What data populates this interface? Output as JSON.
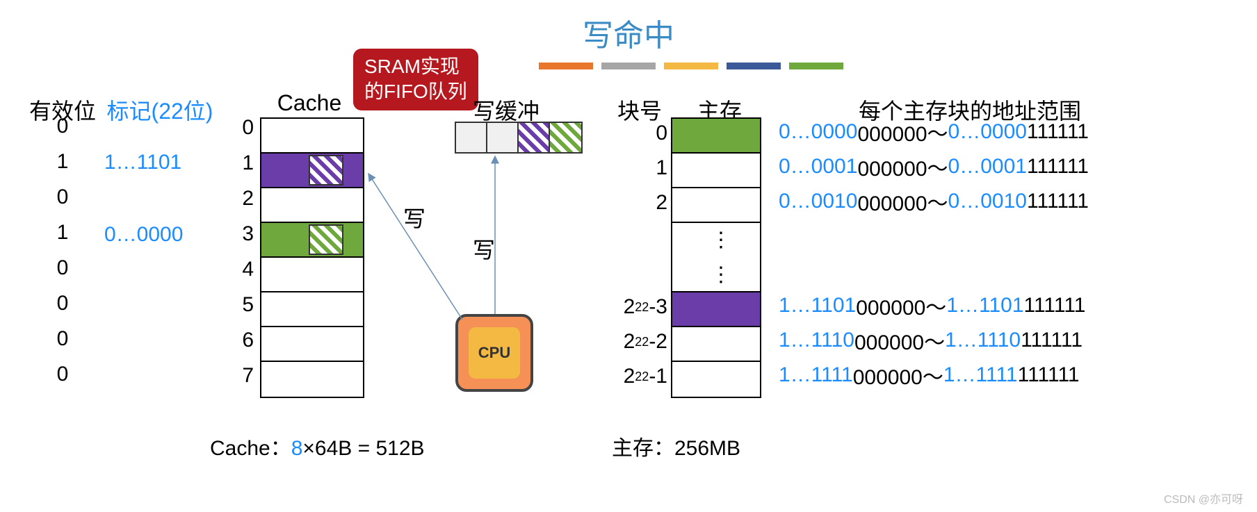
{
  "title": "写命中",
  "color_bars": [
    "#e8762d",
    "#a6a6a6",
    "#f4b942",
    "#3b5998",
    "#6fa83d"
  ],
  "callout": {
    "line1": "SRAM实现",
    "line2": "的FIFO队列",
    "bg": "#b5181e",
    "fg": "#ffffff"
  },
  "buffer_label": "写缓冲",
  "write_buffer": [
    {
      "fill": "#f0f0f0"
    },
    {
      "fill": "#f0f0f0"
    },
    {
      "hatch": "purple"
    },
    {
      "hatch": "green"
    }
  ],
  "headers": {
    "validbit": "有效位",
    "tag": "标记(22位)",
    "cache": "Cache",
    "block": "块号",
    "memory": "主存",
    "addr_range": "每个主存块的地址范围"
  },
  "colors": {
    "blue": "#1a8cff",
    "black": "#000000",
    "purple": "#6b3da8",
    "green": "#6fa83d",
    "arrow": "#6b8fb5"
  },
  "cache": {
    "valid": [
      "0",
      "1",
      "0",
      "1",
      "0",
      "0",
      "0",
      "0"
    ],
    "tags": [
      "",
      "1…1101",
      "",
      "0…0000",
      "",
      "",
      "",
      ""
    ],
    "indices": [
      "0",
      "1",
      "2",
      "3",
      "4",
      "5",
      "6",
      "7"
    ],
    "rows": [
      {
        "fill": null
      },
      {
        "fill": "purple",
        "hatch": "purple"
      },
      {
        "fill": null
      },
      {
        "fill": "green",
        "hatch": "green"
      },
      {
        "fill": null
      },
      {
        "fill": null
      },
      {
        "fill": null
      },
      {
        "fill": null
      }
    ],
    "caption_prefix": "Cache：",
    "caption_blue": "8",
    "caption_suffix": "×64B = 512B"
  },
  "memory": {
    "block_labels": [
      "0",
      "1",
      "2",
      "",
      "",
      "2²²-3",
      "2²²-2",
      "2²²-1"
    ],
    "rows": [
      {
        "fill": "green"
      },
      {
        "fill": null
      },
      {
        "fill": null
      },
      {
        "dots": true
      },
      {
        "dots": true
      },
      {
        "fill": "purple"
      },
      {
        "fill": null
      },
      {
        "fill": null
      }
    ],
    "addr_ranges": [
      {
        "p1": "0…0000",
        "p2": "000000～ ",
        "p3": "0…0000",
        "p4": "111111"
      },
      {
        "p1": "0…0001",
        "p2": "000000～ ",
        "p3": "0…0001",
        "p4": "111111"
      },
      {
        "p1": "0…0010",
        "p2": "000000～ ",
        "p3": "0…0010",
        "p4": "111111"
      },
      null,
      null,
      {
        "p1": "1…1101",
        "p2": "000000～ ",
        "p3": "1…1101",
        "p4": "111111"
      },
      {
        "p1": "1…1110",
        "p2": "000000～ ",
        "p3": "1…1110",
        "p4": "111111"
      },
      {
        "p1": "1…1111",
        "p2": "000000～ ",
        "p3": "1…1111",
        "p4": "111111"
      }
    ],
    "caption": "主存：256MB"
  },
  "cpu_label": "CPU",
  "write_label_1": "写",
  "write_label_2": "写",
  "watermark": "CSDN @亦可呀"
}
